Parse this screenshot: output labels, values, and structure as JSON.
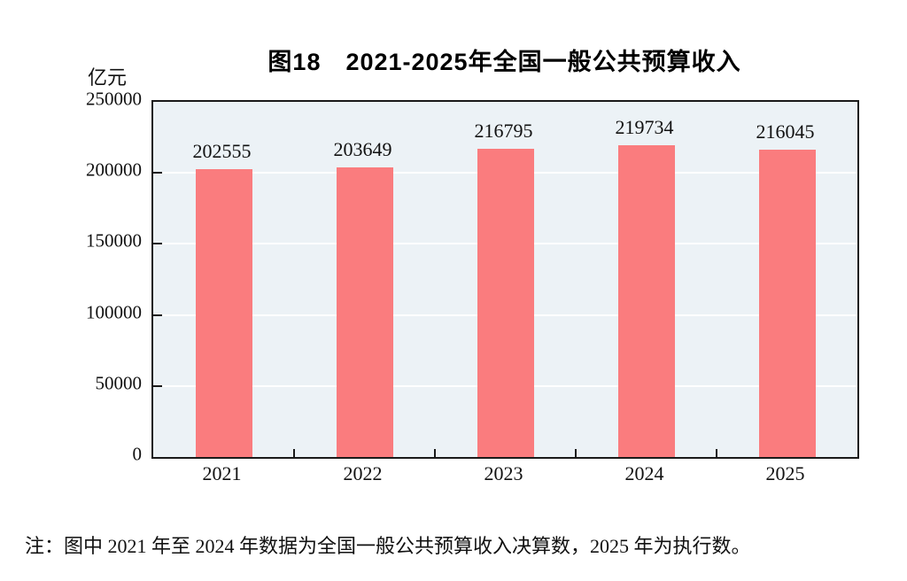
{
  "header": {
    "title": "图18　2021-2025年全国一般公共预算收入",
    "unit_label": "亿元"
  },
  "chart_data": {
    "type": "bar",
    "title": "图18　2021-2025年全国一般公共预算收入",
    "categories": [
      "2021",
      "2022",
      "2023",
      "2024",
      "2025"
    ],
    "values": [
      202555,
      203649,
      216795,
      219734,
      216045
    ],
    "xlabel": "",
    "ylabel": "亿元",
    "ylim": [
      0,
      250000
    ],
    "yticks": [
      0,
      50000,
      100000,
      150000,
      200000,
      250000
    ],
    "grid": true,
    "legend": "none",
    "data_labels": true,
    "bar_color": "#FA7C7E",
    "plot_bg_color": "#ECF2F6",
    "grid_color": "#FFFFFF",
    "axis_color": "#1A1A1A",
    "text_color": "#111111"
  },
  "note": {
    "text": "注：图中 2021 年至 2024 年数据为全国一般公共预算收入决算数，2025 年为执行数。"
  }
}
